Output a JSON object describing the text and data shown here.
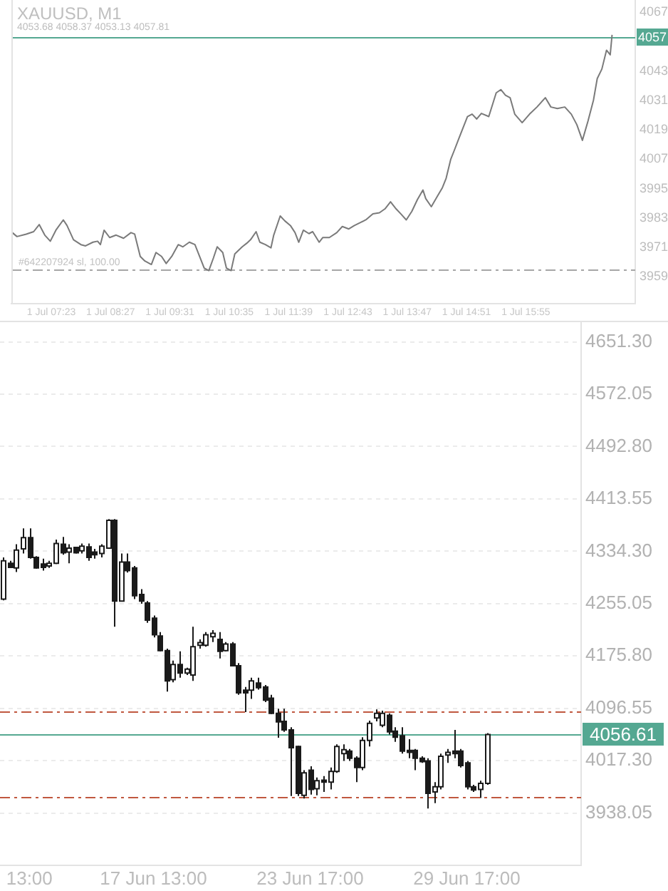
{
  "chart_data": [
    {
      "type": "line",
      "title": "XAUUSD, M1",
      "subtitle": "4053.68 4058.37 4053.13 4057.81",
      "color": "#7a7a7a",
      "marker": "none",
      "x": [
        "--07-01T06:41",
        "--07-01T06:46",
        "--07-01T06:56",
        "--07-01T07:04",
        "--07-01T07:10",
        "--07-01T07:16",
        "--07-01T07:22",
        "--07-01T07:28",
        "--07-01T07:36",
        "--07-01T07:40",
        "--07-01T07:47",
        "--07-01T07:55",
        "--07-01T08:00",
        "--07-01T08:08",
        "--07-01T08:13",
        "--07-01T08:16",
        "--07-01T08:20",
        "--07-01T08:26",
        "--07-01T08:33",
        "--07-01T08:41",
        "--07-01T08:49",
        "--07-01T08:53",
        "--07-01T08:59",
        "--07-01T09:04",
        "--07-01T09:11",
        "--07-01T09:16",
        "--07-01T09:22",
        "--07-01T09:27",
        "--07-01T09:33",
        "--07-01T09:40",
        "--07-01T09:45",
        "--07-01T09:52",
        "--07-01T09:58",
        "--07-01T10:03",
        "--07-01T10:08",
        "--07-01T10:13",
        "--07-01T10:18",
        "--07-01T10:22",
        "--07-01T10:28",
        "--07-01T10:32",
        "--07-01T10:37",
        "--07-01T10:41",
        "--07-01T10:49",
        "--07-01T10:54",
        "--07-01T10:58",
        "--07-01T11:04",
        "--07-01T11:08",
        "--07-01T11:14",
        "--07-01T11:20",
        "--07-01T11:23",
        "--07-01T11:30",
        "--07-01T11:35",
        "--07-01T11:41",
        "--07-01T11:46",
        "--07-01T11:50",
        "--07-01T11:55",
        "--07-01T12:01",
        "--07-01T12:05",
        "--07-01T12:12",
        "--07-01T12:16",
        "--07-01T12:23",
        "--07-01T12:31",
        "--07-01T12:37",
        "--07-01T12:44",
        "--07-01T12:50",
        "--07-01T12:57",
        "--07-01T13:03",
        "--07-01T13:10",
        "--07-01T13:17",
        "--07-01T13:23",
        "--07-01T13:29",
        "--07-01T13:35",
        "--07-01T13:40",
        "--07-01T13:46",
        "--07-01T13:52",
        "--07-01T13:58",
        "--07-01T14:04",
        "--07-01T14:07",
        "--07-01T14:13",
        "--07-01T14:19",
        "--07-01T14:25",
        "--07-01T14:29",
        "--07-01T14:34",
        "--07-01T14:38",
        "--07-01T14:43",
        "--07-01T14:47",
        "--07-01T14:52",
        "--07-01T14:57",
        "--07-01T15:02",
        "--07-01T15:07",
        "--07-01T15:15",
        "--07-01T15:23",
        "--07-01T15:28",
        "--07-01T15:33",
        "--07-01T15:38",
        "--07-01T15:43",
        "--07-01T15:51",
        "--07-01T15:59",
        "--07-01T16:07",
        "--07-01T16:16",
        "--07-01T16:22",
        "--07-01T16:29",
        "--07-01T16:37",
        "--07-01T16:44",
        "--07-01T16:50",
        "--07-01T16:56",
        "--07-01T17:02",
        "--07-01T17:08",
        "--07-01T17:12",
        "--07-01T17:17",
        "--07-01T17:22",
        "--07-01T17:26",
        "--07-01T17:28"
      ],
      "values": [
        3977.0,
        3975.4,
        3976.4,
        3977.4,
        3980.3,
        3976.0,
        3973.5,
        3978.0,
        3982.2,
        3979.9,
        3974.1,
        3972.1,
        3971.6,
        3973.1,
        3973.5,
        3972.1,
        3978.0,
        3975.0,
        3976.0,
        3974.7,
        3977.0,
        3976.4,
        3967.3,
        3965.4,
        3964.0,
        3968.9,
        3967.3,
        3964.4,
        3967.3,
        3972.1,
        3971.2,
        3973.1,
        3972.1,
        3967.3,
        3962.5,
        3961.5,
        3966.7,
        3971.2,
        3968.9,
        3962.5,
        3961.5,
        3968.3,
        3971.2,
        3972.7,
        3974.1,
        3977.4,
        3973.1,
        3972.1,
        3970.8,
        3976.0,
        3983.8,
        3981.8,
        3979.9,
        3977.0,
        3973.1,
        3978.0,
        3976.6,
        3977.4,
        3973.1,
        3975.0,
        3975.0,
        3977.0,
        3979.5,
        3978.5,
        3979.9,
        3981.2,
        3982.4,
        3984.7,
        3985.1,
        3986.7,
        3989.6,
        3986.7,
        3984.7,
        3982.2,
        3985.7,
        3990.5,
        3994.4,
        3990.9,
        3987.6,
        3991.5,
        3995.4,
        3999.2,
        4007.0,
        4010.8,
        4015.7,
        4019.6,
        4024.4,
        4025.4,
        4023.4,
        4025.7,
        4024.4,
        4034.1,
        4035.4,
        4033.1,
        4032.1,
        4025.4,
        4021.9,
        4025.4,
        4028.3,
        4032.1,
        4028.3,
        4027.7,
        4028.3,
        4025.4,
        4021.1,
        4014.7,
        4022.5,
        4031.2,
        4039.9,
        4043.8,
        4051.5,
        4049.6,
        4057.8
      ],
      "xlim": [
        "--07-01T06:40",
        "--07-01T17:53"
      ],
      "ylim": [
        3948,
        4072
      ],
      "xticks": [
        {
          "value": "--07-01T07:23",
          "label": "1 Jul 07:23"
        },
        {
          "value": "--07-01T08:27",
          "label": "1 Jul 08:27"
        },
        {
          "value": "--07-01T09:31",
          "label": "1 Jul 09:31"
        },
        {
          "value": "--07-01T10:35",
          "label": "1 Jul 10:35"
        },
        {
          "value": "--07-01T11:39",
          "label": "1 Jul 11:39"
        },
        {
          "value": "--07-01T12:43",
          "label": "1 Jul 12:43"
        },
        {
          "value": "--07-01T13:47",
          "label": "1 Jul 13:47"
        },
        {
          "value": "--07-01T14:51",
          "label": "1 Jul 14:51"
        },
        {
          "value": "--07-01T15:55",
          "label": "1 Jul 15:55"
        }
      ],
      "yticks": [
        4067,
        4043,
        4031,
        4019,
        4007,
        3995,
        3983,
        3971,
        3959
      ],
      "ref_lines": [
        {
          "axis": "y",
          "value": 4057,
          "label": "4057",
          "color": "#55a892"
        },
        {
          "axis": "y",
          "value": 3962,
          "label": "#642207924 sl, 100.00",
          "color": "#a6a6a6",
          "line_style": "dashed"
        }
      ]
    },
    {
      "type": "candlestick",
      "color": "#1a1a1a",
      "grid": "y",
      "categories": [
        null,
        null,
        null,
        null,
        "13:00",
        null,
        null,
        null,
        null,
        null,
        null,
        null,
        null,
        null,
        null,
        null,
        null,
        null,
        null,
        null,
        null,
        null,
        null,
        "17 Jun 13:00",
        null,
        null,
        null,
        null,
        null,
        null,
        null,
        null,
        null,
        null,
        null,
        null,
        null,
        null,
        null,
        null,
        null,
        null,
        null,
        null,
        null,
        null,
        null,
        "23 Jun 17:00",
        null,
        null,
        null,
        null,
        null,
        null,
        null,
        null,
        null,
        null,
        null,
        null,
        null,
        null,
        null,
        null,
        null,
        null,
        null,
        null,
        null,
        null,
        null,
        "29 Jun 17:00",
        null,
        null,
        null,
        null,
        null,
        null,
        null,
        null,
        null,
        null,
        null,
        null,
        null,
        null,
        null,
        null,
        null
      ],
      "ohlc": [
        [
          4262,
          4325,
          4260,
          4320
        ],
        [
          4316,
          4320,
          4309,
          4310
        ],
        [
          4309,
          4345,
          4303,
          4336
        ],
        [
          4338,
          4369,
          4331,
          4355
        ],
        [
          4355,
          4369,
          4323,
          4325
        ],
        [
          4325,
          4327,
          4308,
          4309
        ],
        [
          4315,
          4323,
          4305,
          4310
        ],
        [
          4312,
          4320,
          4309,
          4316
        ],
        [
          4316,
          4352,
          4315,
          4346
        ],
        [
          4345,
          4356,
          4329,
          4332
        ],
        [
          4333,
          4345,
          4316,
          4339
        ],
        [
          4340,
          4341,
          4331,
          4332
        ],
        [
          4335,
          4346,
          4331,
          4342
        ],
        [
          4341,
          4346,
          4320,
          4325
        ],
        [
          4333,
          4338,
          4323,
          4329
        ],
        [
          4331,
          4345,
          4325,
          4342
        ],
        [
          4339,
          4383,
          4338,
          4381
        ],
        [
          4381,
          4383,
          4220,
          4259
        ],
        [
          4259,
          4331,
          4258,
          4318
        ],
        [
          4318,
          4331,
          4302,
          4305
        ],
        [
          4309,
          4312,
          4262,
          4267
        ],
        [
          4269,
          4277,
          4255,
          4259
        ],
        [
          4256,
          4259,
          4226,
          4230
        ],
        [
          4233,
          4237,
          4204,
          4208
        ],
        [
          4206,
          4212,
          4183,
          4184
        ],
        [
          4184,
          4187,
          4122,
          4138
        ],
        [
          4140,
          4169,
          4136,
          4163
        ],
        [
          4163,
          4183,
          4143,
          4150
        ],
        [
          4150,
          4158,
          4147,
          4156
        ],
        [
          4147,
          4220,
          4138,
          4190
        ],
        [
          4192,
          4201,
          4187,
          4196
        ],
        [
          4192,
          4212,
          4190,
          4208
        ],
        [
          4205,
          4215,
          4197,
          4210
        ],
        [
          4201,
          4212,
          4172,
          4183
        ],
        [
          4184,
          4197,
          4183,
          4194
        ],
        [
          4194,
          4197,
          4160,
          4161
        ],
        [
          4161,
          4165,
          4117,
          4120
        ],
        [
          4124,
          4129,
          4091,
          4120
        ],
        [
          4124,
          4143,
          4111,
          4138
        ],
        [
          4135,
          4143,
          4125,
          4128
        ],
        [
          4129,
          4132,
          4106,
          4109
        ],
        [
          4112,
          4117,
          4088,
          4089
        ],
        [
          4089,
          4096,
          4052,
          4076
        ],
        [
          4077,
          4096,
          4061,
          4064
        ],
        [
          4064,
          4068,
          3964,
          4037
        ],
        [
          4039,
          4040,
          3964,
          3968
        ],
        [
          3965,
          4003,
          3960,
          3999
        ],
        [
          4003,
          4009,
          3966,
          3974
        ],
        [
          3975,
          3992,
          3965,
          3987
        ],
        [
          3988,
          3994,
          3970,
          3985
        ],
        [
          3985,
          4007,
          3974,
          4001
        ],
        [
          4001,
          4042,
          3999,
          4039
        ],
        [
          4028,
          4042,
          4017,
          4034
        ],
        [
          4032,
          4035,
          4017,
          4021
        ],
        [
          4021,
          4024,
          3985,
          4007
        ],
        [
          4007,
          4053,
          4003,
          4048
        ],
        [
          4048,
          4078,
          4039,
          4074
        ],
        [
          4082,
          4095,
          4077,
          4089
        ],
        [
          4071,
          4093,
          4068,
          4089
        ],
        [
          4086,
          4089,
          4057,
          4061
        ],
        [
          4062,
          4068,
          4046,
          4053
        ],
        [
          4055,
          4068,
          4028,
          4032
        ],
        [
          4033,
          4050,
          4021,
          4030
        ],
        [
          4033,
          4035,
          4003,
          4021
        ],
        [
          4021,
          4024,
          4014,
          4016
        ],
        [
          4017,
          4021,
          3945,
          3968
        ],
        [
          3970,
          3985,
          3953,
          3978
        ],
        [
          3978,
          4028,
          3974,
          4024
        ],
        [
          4026,
          4035,
          4014,
          4030
        ],
        [
          4032,
          4064,
          4021,
          4028
        ],
        [
          4032,
          4035,
          4007,
          4010
        ],
        [
          4014,
          4017,
          3974,
          3978
        ],
        [
          3978,
          3981,
          3970,
          3973
        ],
        [
          3974,
          3987,
          3961,
          3983
        ],
        [
          3983,
          4059,
          3981,
          4057
        ],
        null,
        null,
        null,
        null,
        null,
        null,
        null,
        null,
        null,
        null,
        null,
        null,
        null,
        null
      ],
      "ylim": [
        3859,
        4681
      ],
      "yticks": [
        {
          "value": 4651.3,
          "label": "4651.30"
        },
        {
          "value": 4572.05,
          "label": "4572.05"
        },
        {
          "value": 4492.8,
          "label": "4492.80"
        },
        {
          "value": 4413.55,
          "label": "4413.55"
        },
        {
          "value": 4334.3,
          "label": "4334.30"
        },
        {
          "value": 4255.05,
          "label": "4255.05"
        },
        {
          "value": 4175.8,
          "label": "4175.80"
        },
        {
          "value": 4096.55,
          "label": "4096.55"
        },
        {
          "value": 4017.3,
          "label": "4017.30"
        },
        {
          "value": 3938.05,
          "label": "3938.05"
        }
      ],
      "ref_lines": [
        {
          "axis": "y",
          "value": 4056.61,
          "label": "4056.61",
          "color": "#55a892"
        },
        {
          "axis": "y",
          "value": 4091,
          "color": "#c0583f",
          "line_style": "dashed"
        },
        {
          "axis": "y",
          "value": 3962,
          "color": "#c0583f",
          "line_style": "dashed"
        }
      ]
    }
  ]
}
